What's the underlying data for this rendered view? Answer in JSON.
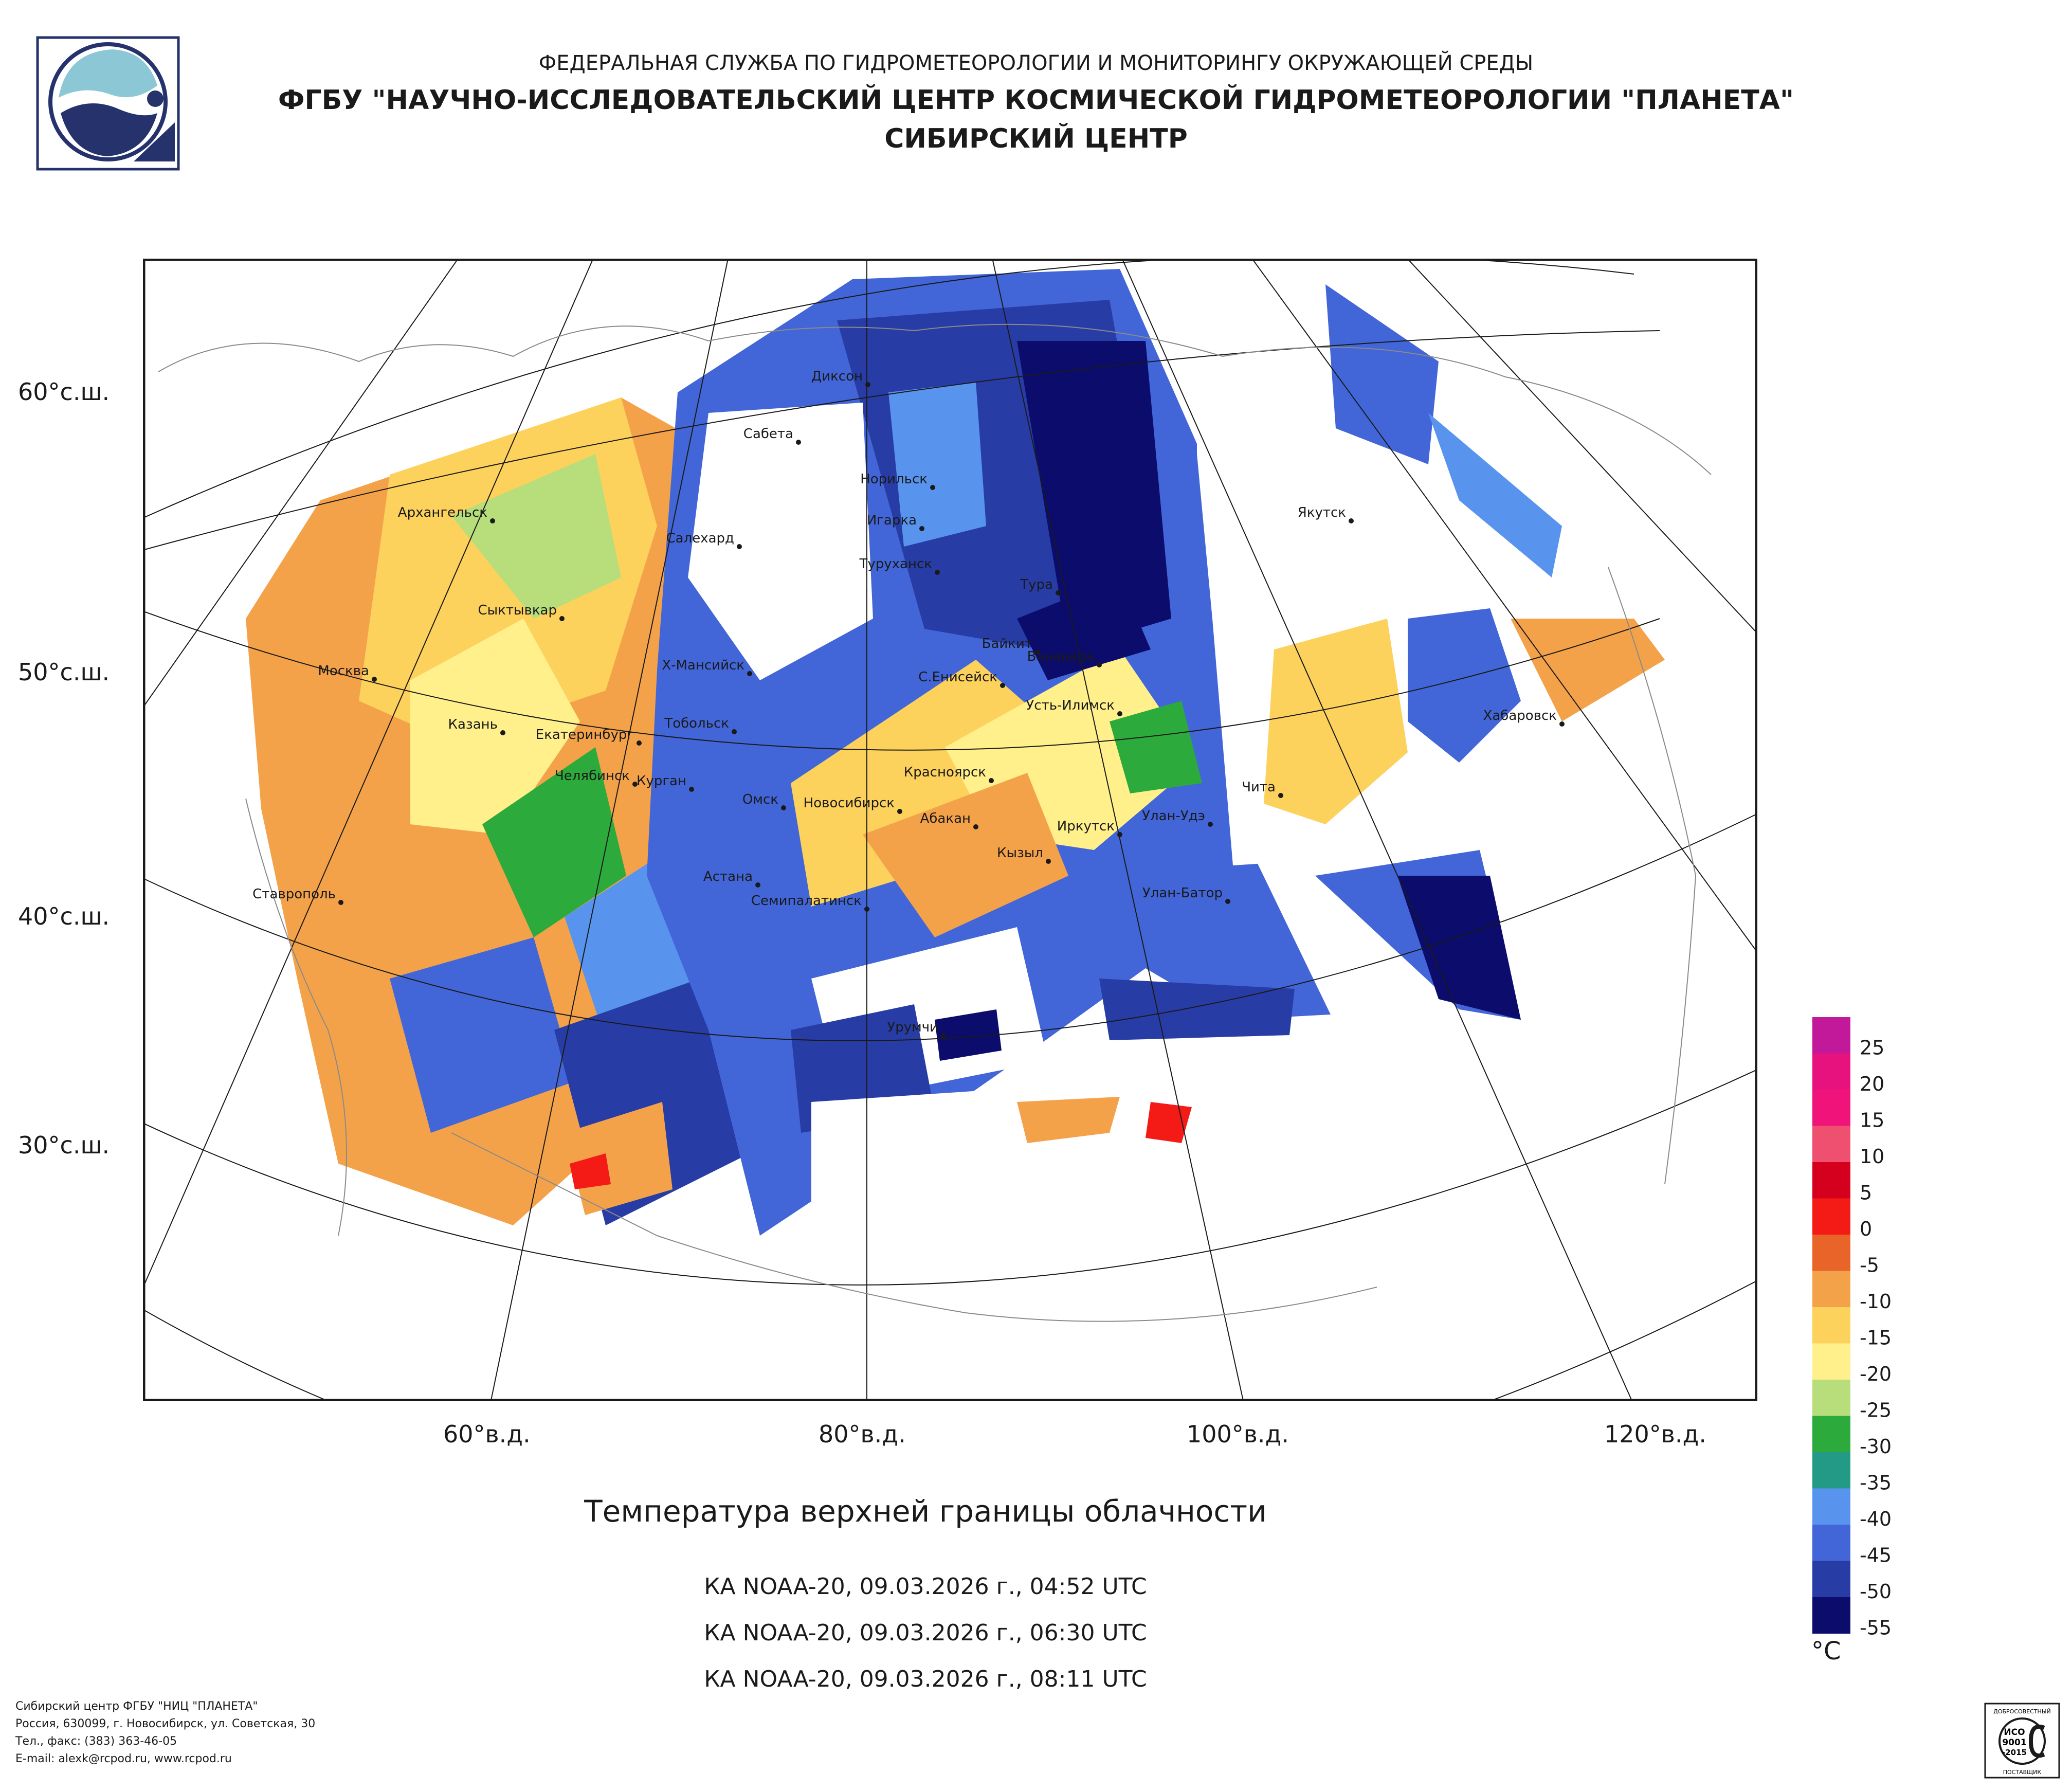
{
  "header": {
    "agency": "ФЕДЕРАЛЬНАЯ СЛУЖБА ПО ГИДРОМЕТЕОРОЛОГИИ И МОНИТОРИНГУ ОКРУЖАЮЩЕЙ СРЕДЫ",
    "institute": "ФГБУ \"НАУЧНО-ИССЛЕДОВАТЕЛЬСКИЙ ЦЕНТР КОСМИЧЕСКОЙ ГИДРОМЕТЕОРОЛОГИИ \"ПЛАНЕТА\"",
    "center": "СИБИРСКИЙ ЦЕНТР"
  },
  "map": {
    "lat_labels": [
      "60°с.ш.",
      "50°с.ш.",
      "40°с.ш.",
      "30°с.ш."
    ],
    "lon_labels": [
      "60°в.д.",
      "80°в.д.",
      "100°в.д.",
      "120°в.д."
    ],
    "cities": [
      "Диксон",
      "Сабета",
      "Норильск",
      "Игарка",
      "Туруханск",
      "Салехард",
      "Архангельск",
      "Якутск",
      "Сыктывкар",
      "Тура",
      "Байкит",
      "Ванавара",
      "Х-Мансийск",
      "С.Енисейск",
      "Москва",
      "Усть-Илимск",
      "Казань",
      "Тобольск",
      "Екатеринбург",
      "Хабаровск",
      "Красноярск",
      "Челябинск",
      "Курган",
      "Чита",
      "Омск",
      "Новосибирск",
      "Абакан",
      "Улан-Удэ",
      "Иркутск",
      "Кызыл",
      "Астана",
      "Ставрополь",
      "Улан-Батор",
      "Семипалатинск",
      "Урумчи"
    ]
  },
  "title": "Температура верхней границы облачности",
  "passes": [
    "КА NOAA-20, 09.03.2026 г., 04:52 UTC",
    "КА NOAA-20, 09.03.2026 г., 06:30 UTC",
    "КА NOAA-20, 09.03.2026 г., 08:11 UTC"
  ],
  "legend": {
    "unit": "°C",
    "values": [
      "25",
      "20",
      "15",
      "10",
      "5",
      "0",
      "-5",
      "-10",
      "-15",
      "-20",
      "-25",
      "-30",
      "-35",
      "-40",
      "-45",
      "-50",
      "-55"
    ],
    "colors": [
      "#c2189a",
      "#e8127f",
      "#f0147a",
      "#f0506f",
      "#d4001e",
      "#f41b17",
      "#e86428",
      "#f4a24a",
      "#fcd15c",
      "#fff08c",
      "#b7de7a",
      "#2caa3c",
      "#229a86",
      "#5894ee",
      "#4266d8",
      "#283ca6",
      "#0c0c6c"
    ]
  },
  "footer": [
    "Сибирский центр ФГБУ \"НИЦ \"ПЛАНЕТА\"",
    "Россия, 630099, г. Новосибирск, ул. Советская, 30",
    "Тел., факс: (383) 363-46-05",
    "E-mail: alexk@rcpod.ru, www.rcpod.ru"
  ],
  "iso_badge": {
    "top": "ДОБРОСОВЕСТНЫЙ",
    "line1": "ИСО",
    "line2": "9001",
    "line3": "-2015",
    "bottom": "ПОСТАВЩИК"
  }
}
